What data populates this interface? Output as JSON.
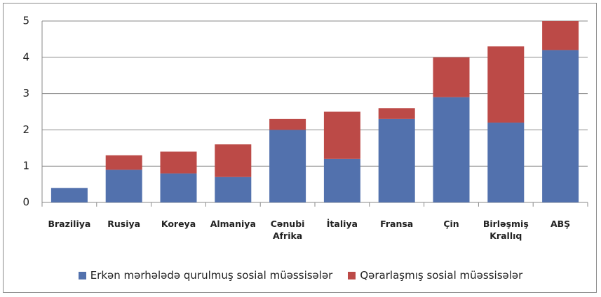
{
  "chart_data": {
    "type": "bar",
    "stacked": true,
    "categories": [
      "Braziliya",
      "Rusiya",
      "Koreya",
      "Almaniya",
      "Cənubi Afrika",
      "İtaliya",
      "Fransa",
      "Çin",
      "Birləşmiş Krallıq",
      "ABŞ"
    ],
    "series": [
      {
        "name": "Erkən mərhələdə qurulmuş sosial müəssisələr",
        "color": "#5271ad",
        "values": [
          0.4,
          0.9,
          0.8,
          0.7,
          2.0,
          1.2,
          2.3,
          2.9,
          2.2,
          4.2
        ]
      },
      {
        "name": "Qərarlaşmış sosial müəssisələr",
        "color": "#bc4a47",
        "values": [
          0,
          0.4,
          0.6,
          0.9,
          0.3,
          1.3,
          0.3,
          1.1,
          2.1,
          0.8
        ]
      }
    ],
    "ylim": [
      0,
      5
    ],
    "yticks": [
      0,
      1,
      2,
      3,
      4,
      5
    ],
    "grid": true,
    "legend": "bottom"
  }
}
